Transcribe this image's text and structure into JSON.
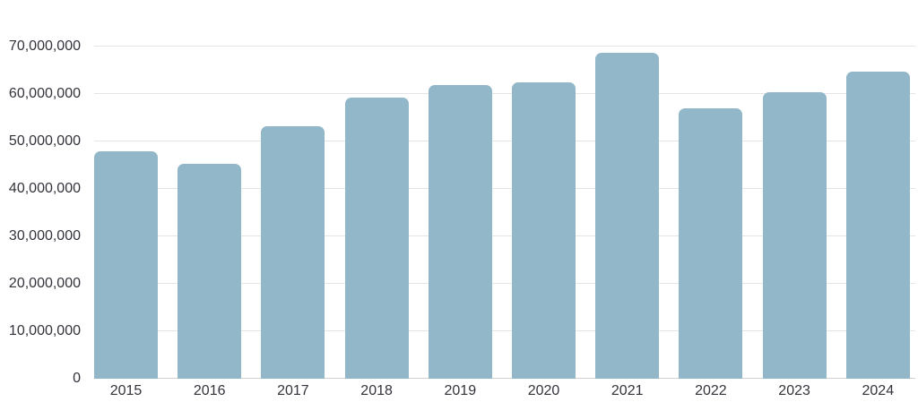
{
  "chart_data": {
    "type": "bar",
    "categories": [
      "2015",
      "2016",
      "2017",
      "2018",
      "2019",
      "2020",
      "2021",
      "2022",
      "2023",
      "2024"
    ],
    "values": [
      47900000,
      45300000,
      53200000,
      59200000,
      61800000,
      62500000,
      68700000,
      57000000,
      60300000,
      64700000
    ],
    "title": "",
    "xlabel": "",
    "ylabel": "",
    "ylim": [
      0,
      70000000
    ],
    "grid": true,
    "legend_position": "none",
    "y_ticks": [
      {
        "value": 0,
        "label": "0"
      },
      {
        "value": 10000000,
        "label": "10,000,000"
      },
      {
        "value": 20000000,
        "label": "20,000,000"
      },
      {
        "value": 30000000,
        "label": "30,000,000"
      },
      {
        "value": 40000000,
        "label": "40,000,000"
      },
      {
        "value": 50000000,
        "label": "50,000,000"
      },
      {
        "value": 60000000,
        "label": "60,000,000"
      },
      {
        "value": 70000000,
        "label": "70,000,000"
      }
    ],
    "colors": {
      "bar": "#92b7c8",
      "gridline": "#e4e4e4",
      "axis_line": "#d2d2d2",
      "text": "#33333c",
      "background": "#ffffff"
    }
  }
}
